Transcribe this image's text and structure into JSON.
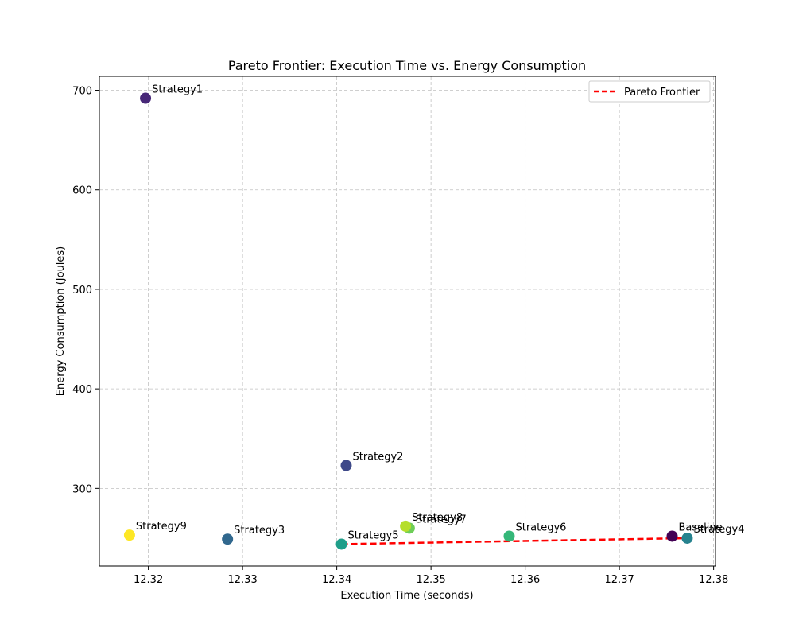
{
  "chart_data": {
    "type": "scatter",
    "title": "Pareto Frontier: Execution Time vs. Energy Consumption",
    "xlabel": "Execution Time (seconds)",
    "ylabel": "Energy Consumption (Joules)",
    "xlim": [
      12.3148,
      12.3802
    ],
    "ylim": [
      222,
      714
    ],
    "xticks": [
      12.32,
      12.33,
      12.34,
      12.35,
      12.36,
      12.37,
      12.38
    ],
    "xtick_labels": [
      "12.32",
      "12.33",
      "12.34",
      "12.35",
      "12.36",
      "12.37",
      "12.38"
    ],
    "yticks": [
      300,
      400,
      500,
      600,
      700
    ],
    "ytick_labels": [
      "300",
      "400",
      "500",
      "600",
      "700"
    ],
    "grid": true,
    "legend_position": "top-right",
    "points": [
      {
        "label": "Baseline",
        "x": 12.3756,
        "y": 252,
        "color": "#440154"
      },
      {
        "label": "Strategy1",
        "x": 12.3197,
        "y": 692,
        "color": "#482878"
      },
      {
        "label": "Strategy2",
        "x": 12.341,
        "y": 323,
        "color": "#3e4989"
      },
      {
        "label": "Strategy3",
        "x": 12.3284,
        "y": 249,
        "color": "#31688e"
      },
      {
        "label": "Strategy4",
        "x": 12.3772,
        "y": 250,
        "color": "#26828e"
      },
      {
        "label": "Strategy5",
        "x": 12.3405,
        "y": 244,
        "color": "#1f9e89"
      },
      {
        "label": "Strategy6",
        "x": 12.3583,
        "y": 252,
        "color": "#35b779"
      },
      {
        "label": "Strategy7",
        "x": 12.3477,
        "y": 260,
        "color": "#6ece58"
      },
      {
        "label": "Strategy8",
        "x": 12.3473,
        "y": 262,
        "color": "#b5de2b"
      },
      {
        "label": "Strategy9",
        "x": 12.318,
        "y": 253,
        "color": "#fde725"
      }
    ],
    "pareto_frontier": {
      "name": "Pareto Frontier",
      "color": "#ff0000",
      "x": [
        12.3405,
        12.3772
      ],
      "y": [
        244,
        250
      ]
    }
  }
}
